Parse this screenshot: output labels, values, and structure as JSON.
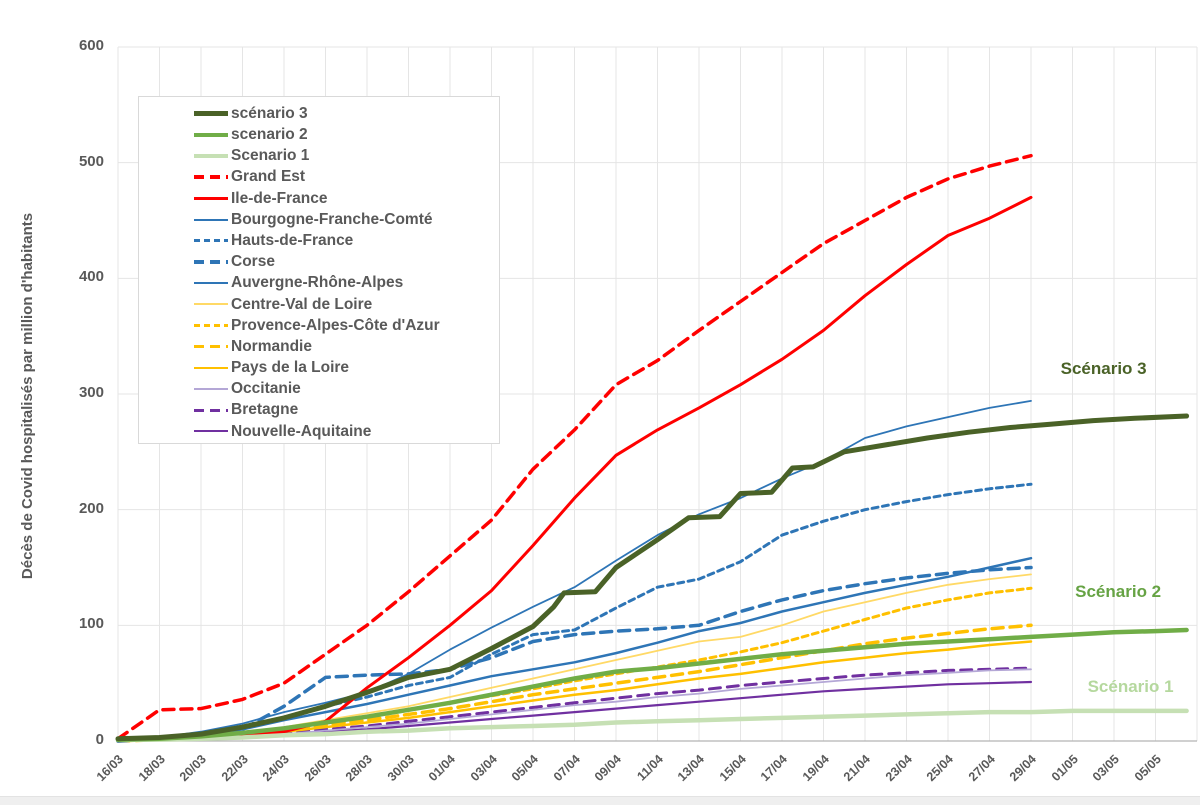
{
  "page": {
    "background": "#ffffff",
    "bottom_bar_color": "#efefef"
  },
  "chart_data": {
    "type": "line",
    "title": "",
    "ylabel": "Décès de Covid hospitalisés par million d'habitants",
    "xlabel": "",
    "ylim": [
      0,
      600
    ],
    "y_ticks": [
      0,
      100,
      200,
      300,
      400,
      500,
      600
    ],
    "x_tick_step_days": 2,
    "x_tick_labels": [
      "16/03",
      "18/03",
      "20/03",
      "22/03",
      "24/03",
      "26/03",
      "28/03",
      "30/03",
      "01/04",
      "03/04",
      "05/04",
      "07/04",
      "09/04",
      "11/04",
      "13/04",
      "15/04",
      "17/04",
      "19/04",
      "21/04",
      "23/04",
      "25/04",
      "27/04",
      "29/04",
      "01/05",
      "03/05",
      "05/05"
    ],
    "grid": true,
    "legend_position": "upper-left",
    "text_color": "#595959",
    "grid_color": "#e5e5e5",
    "axis_color": "#b3b3b3",
    "annotations": [
      {
        "text": "Scénario 3",
        "color": "#4a6227",
        "day": 47.5,
        "value": 322
      },
      {
        "text": "Scénario 2",
        "color": "#66a344",
        "day": 48.2,
        "value": 129
      },
      {
        "text": "Scénario 1",
        "color": "#b5d89e",
        "day": 48.8,
        "value": 47
      }
    ],
    "series": [
      {
        "name": "scénario 3",
        "color": "#4a6227",
        "dash": "solid",
        "width": 5,
        "x": [
          0,
          2,
          4,
          6,
          8,
          10,
          12,
          14,
          16,
          18,
          20,
          21,
          21.5,
          23,
          24,
          26,
          27.5,
          29,
          30,
          31.5,
          32.5,
          33.5,
          35,
          37,
          39,
          41,
          43,
          45,
          47,
          49,
          51.5
        ],
        "values": [
          2,
          3,
          6,
          12,
          20,
          30,
          42,
          55,
          62,
          80,
          99,
          116,
          128,
          129,
          150,
          174,
          193,
          194,
          214,
          215,
          236,
          237,
          250,
          256,
          262,
          267,
          271,
          274,
          277,
          279,
          281
        ]
      },
      {
        "name": "scenario 2",
        "color": "#70ad47",
        "dash": "solid",
        "width": 4.5,
        "x": [
          0,
          2,
          4,
          6,
          8,
          10,
          12,
          14,
          16,
          18,
          20,
          22,
          24,
          26,
          28,
          30,
          32,
          34,
          36,
          38,
          40,
          42,
          44,
          46,
          48,
          50,
          51.5
        ],
        "values": [
          1,
          2,
          4,
          7,
          11,
          16,
          21,
          27,
          33,
          40,
          47,
          54,
          60,
          63,
          67,
          71,
          75,
          78,
          81,
          84,
          86,
          88,
          90,
          92,
          94,
          95,
          96
        ]
      },
      {
        "name": "Scenario 1",
        "color": "#c6e0b4",
        "dash": "solid",
        "width": 4.5,
        "x": [
          0,
          2,
          4,
          6,
          8,
          10,
          12,
          14,
          16,
          18,
          20,
          22,
          24,
          26,
          28,
          30,
          32,
          34,
          36,
          38,
          40,
          42,
          44,
          46,
          48,
          50,
          51.5
        ],
        "values": [
          1,
          1,
          2,
          3,
          5,
          6,
          8,
          9,
          11,
          12,
          13,
          14,
          16,
          17,
          18,
          19,
          20,
          21,
          22,
          23,
          24,
          25,
          25,
          26,
          26,
          26,
          26
        ]
      },
      {
        "name": "Grand Est",
        "color": "#ff0000",
        "dash": "longdash",
        "width": 3.5,
        "x": [
          0,
          2,
          4,
          6,
          8,
          10,
          12,
          14,
          16,
          18,
          20,
          22,
          24,
          26,
          28,
          30,
          32,
          34,
          36,
          38,
          40,
          42,
          44
        ],
        "values": [
          2,
          27,
          28,
          36,
          50,
          75,
          100,
          129,
          160,
          191,
          235,
          269,
          308,
          329,
          355,
          380,
          405,
          430,
          450,
          470,
          486,
          497,
          506
        ]
      },
      {
        "name": "Ile-de-France",
        "color": "#ff0000",
        "dash": "solid",
        "width": 3,
        "x": [
          0,
          2,
          4,
          6,
          8,
          10,
          12,
          14,
          16,
          18,
          20,
          22,
          24,
          26,
          28,
          30,
          32,
          34,
          36,
          38,
          40,
          42,
          44
        ],
        "values": [
          1,
          2,
          4,
          6,
          8,
          17,
          46,
          72,
          100,
          130,
          169,
          210,
          247,
          269,
          288,
          308,
          330,
          355,
          385,
          412,
          437,
          452,
          470
        ]
      },
      {
        "name": "Bourgogne-Franche-Comté",
        "color": "#2e75b6",
        "dash": "solid",
        "width": 1.8,
        "x": [
          0,
          2,
          4,
          6,
          8,
          10,
          12,
          14,
          16,
          18,
          20,
          22,
          24,
          26,
          28,
          30,
          32,
          34,
          36,
          38,
          40,
          42,
          44
        ],
        "values": [
          1,
          3,
          8,
          15,
          25,
          33,
          42,
          58,
          79,
          98,
          116,
          133,
          156,
          178,
          196,
          210,
          227,
          242,
          262,
          272,
          280,
          288,
          294
        ]
      },
      {
        "name": "Hauts-de-France",
        "color": "#2e75b6",
        "dash": "dash",
        "width": 3,
        "x": [
          0,
          2,
          4,
          6,
          8,
          10,
          12,
          14,
          16,
          18,
          20,
          22,
          24,
          26,
          28,
          30,
          32,
          34,
          36,
          38,
          40,
          42,
          44
        ],
        "values": [
          1,
          3,
          6,
          12,
          20,
          30,
          38,
          48,
          55,
          75,
          92,
          96,
          115,
          133,
          140,
          155,
          178,
          190,
          200,
          207,
          213,
          218,
          222
        ]
      },
      {
        "name": "Corse",
        "color": "#2e75b6",
        "dash": "longdash",
        "width": 3.5,
        "x": [
          0,
          2,
          4,
          6,
          8,
          10,
          12,
          14,
          16,
          18,
          20,
          22,
          24,
          26,
          28,
          30,
          32,
          34,
          36,
          38,
          40,
          42,
          44
        ],
        "values": [
          0,
          2,
          5,
          10,
          30,
          55,
          57,
          58,
          62,
          72,
          86,
          92,
          95,
          97,
          100,
          112,
          122,
          130,
          136,
          141,
          145,
          148,
          150
        ]
      },
      {
        "name": "Auvergne-Rhône-Alpes",
        "color": "#2e75b6",
        "dash": "solid",
        "width": 2.5,
        "x": [
          0,
          2,
          4,
          6,
          8,
          10,
          12,
          14,
          16,
          18,
          20,
          22,
          24,
          26,
          28,
          30,
          32,
          34,
          36,
          38,
          40,
          42,
          44
        ],
        "values": [
          1,
          2,
          5,
          10,
          18,
          25,
          32,
          40,
          48,
          56,
          62,
          68,
          76,
          85,
          95,
          102,
          112,
          120,
          128,
          135,
          142,
          150,
          158
        ]
      },
      {
        "name": "Centre-Val de Loire",
        "color": "#ffd966",
        "dash": "solid",
        "width": 1.8,
        "x": [
          0,
          2,
          4,
          6,
          8,
          10,
          12,
          14,
          16,
          18,
          20,
          22,
          24,
          26,
          28,
          30,
          32,
          34,
          36,
          38,
          40,
          42,
          44
        ],
        "values": [
          0,
          1,
          3,
          6,
          12,
          18,
          24,
          30,
          38,
          46,
          54,
          62,
          70,
          78,
          86,
          90,
          100,
          112,
          120,
          128,
          135,
          140,
          144
        ]
      },
      {
        "name": "Provence-Alpes-Côte d'Azur",
        "color": "#ffc000",
        "dash": "dash",
        "width": 3,
        "x": [
          0,
          2,
          4,
          6,
          8,
          10,
          12,
          14,
          16,
          18,
          20,
          22,
          24,
          26,
          28,
          30,
          32,
          34,
          36,
          38,
          40,
          42,
          44
        ],
        "values": [
          0,
          1,
          3,
          6,
          11,
          16,
          21,
          27,
          33,
          39,
          45,
          52,
          58,
          64,
          70,
          77,
          85,
          95,
          105,
          115,
          122,
          128,
          132
        ]
      },
      {
        "name": "Normandie",
        "color": "#ffc000",
        "dash": "longdash",
        "width": 3.5,
        "x": [
          0,
          2,
          4,
          6,
          8,
          10,
          12,
          14,
          16,
          18,
          20,
          22,
          24,
          26,
          28,
          30,
          32,
          34,
          36,
          38,
          40,
          42,
          44
        ],
        "values": [
          0,
          1,
          2,
          5,
          9,
          14,
          18,
          23,
          28,
          34,
          40,
          45,
          50,
          55,
          60,
          66,
          72,
          78,
          84,
          89,
          93,
          97,
          100
        ]
      },
      {
        "name": "Pays de la Loire",
        "color": "#ffc000",
        "dash": "solid",
        "width": 2.5,
        "x": [
          0,
          2,
          4,
          6,
          8,
          10,
          12,
          14,
          16,
          18,
          20,
          22,
          24,
          26,
          28,
          30,
          32,
          34,
          36,
          38,
          40,
          42,
          44
        ],
        "values": [
          0,
          1,
          2,
          4,
          8,
          12,
          16,
          20,
          25,
          30,
          35,
          40,
          44,
          49,
          54,
          58,
          63,
          68,
          72,
          76,
          79,
          83,
          86
        ]
      },
      {
        "name": "Occitanie",
        "color": "#b4a7d6",
        "dash": "solid",
        "width": 1.8,
        "x": [
          0,
          2,
          4,
          6,
          8,
          10,
          12,
          14,
          16,
          18,
          20,
          22,
          24,
          26,
          28,
          30,
          32,
          34,
          36,
          38,
          40,
          42,
          44
        ],
        "values": [
          0,
          1,
          2,
          3,
          6,
          9,
          12,
          15,
          19,
          23,
          27,
          31,
          34,
          38,
          41,
          45,
          48,
          51,
          54,
          57,
          59,
          61,
          62
        ]
      },
      {
        "name": "Bretagne",
        "color": "#7030a0",
        "dash": "longdash",
        "width": 3,
        "x": [
          0,
          2,
          4,
          6,
          8,
          10,
          12,
          14,
          16,
          18,
          20,
          22,
          24,
          26,
          28,
          30,
          32,
          34,
          36,
          38,
          40,
          42,
          44
        ],
        "values": [
          0,
          1,
          2,
          4,
          7,
          10,
          13,
          17,
          21,
          25,
          29,
          33,
          37,
          41,
          44,
          48,
          51,
          54,
          57,
          59,
          61,
          62,
          63
        ]
      },
      {
        "name": "Nouvelle-Aquitaine",
        "color": "#7030a0",
        "dash": "solid",
        "width": 2.2,
        "x": [
          0,
          2,
          4,
          6,
          8,
          10,
          12,
          14,
          16,
          18,
          20,
          22,
          24,
          26,
          28,
          30,
          32,
          34,
          36,
          38,
          40,
          42,
          44
        ],
        "values": [
          0,
          1,
          2,
          3,
          5,
          8,
          10,
          13,
          16,
          19,
          22,
          25,
          28,
          31,
          34,
          37,
          40,
          43,
          45,
          47,
          49,
          50,
          51
        ]
      }
    ]
  }
}
